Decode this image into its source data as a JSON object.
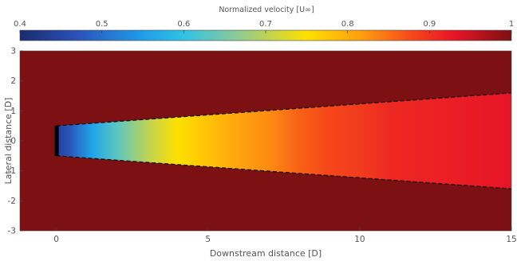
{
  "chart_data": {
    "type": "heatmap",
    "title": "",
    "colorbar": {
      "label": "Normalized velocity [U∞]",
      "placement": "top",
      "range": [
        0.4,
        1.0
      ],
      "ticks": [
        0.4,
        0.5,
        0.6,
        0.7,
        0.8,
        0.9,
        1.0
      ],
      "tick_labels": [
        "0.4",
        "0.5",
        "0.6",
        "0.7",
        "0.8",
        "0.9",
        "1"
      ],
      "colormap_stops": [
        {
          "value": 0.4,
          "color": "#1a2a6e"
        },
        {
          "value": 0.47,
          "color": "#2b52b8"
        },
        {
          "value": 0.55,
          "color": "#1e9ee8"
        },
        {
          "value": 0.6,
          "color": "#2fc3e6"
        },
        {
          "value": 0.66,
          "color": "#86c9a0"
        },
        {
          "value": 0.75,
          "color": "#ffe000"
        },
        {
          "value": 0.82,
          "color": "#ff9a10"
        },
        {
          "value": 0.88,
          "color": "#f5461a"
        },
        {
          "value": 0.93,
          "color": "#e81427"
        },
        {
          "value": 1.0,
          "color": "#7c1013"
        }
      ]
    },
    "xlabel": "Downstream distance [D]",
    "ylabel": "Lateral distance [D]",
    "xlim": [
      -1.2,
      15
    ],
    "ylim": [
      -3,
      3
    ],
    "xticks": [
      0,
      5,
      10,
      15
    ],
    "yticks": [
      -3,
      -2,
      -1,
      0,
      1,
      2,
      3
    ],
    "grid": false,
    "background_velocity": 1.0,
    "wake": {
      "boundary_style": "dashed-black",
      "start_halfwidth": 0.5,
      "end_halfwidth": 1.6,
      "x_start": 0,
      "x_end": 15,
      "centerline_velocity": {
        "x": [
          0,
          0.4,
          1.2,
          2.0,
          3.0,
          4.0,
          5.0,
          6.0,
          7.0,
          8.0,
          9.0,
          10.0,
          11.0,
          12.0,
          13.0,
          14.0,
          15.0
        ],
        "values": [
          0.44,
          0.47,
          0.56,
          0.63,
          0.7,
          0.75,
          0.78,
          0.81,
          0.83,
          0.86,
          0.88,
          0.89,
          0.91,
          0.915,
          0.92,
          0.925,
          0.93
        ]
      }
    },
    "rotor": {
      "x": 0,
      "halfwidth": 0.5,
      "color": "#000000"
    }
  }
}
